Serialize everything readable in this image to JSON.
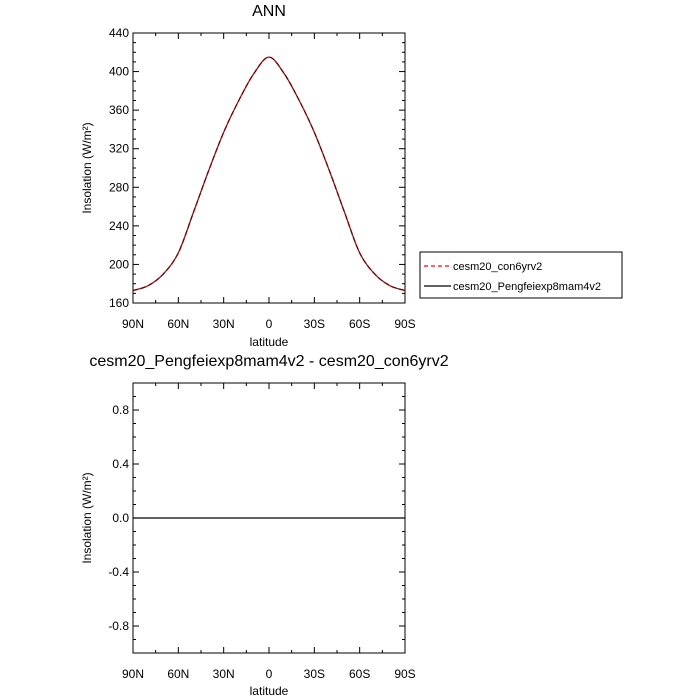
{
  "chart_data": [
    {
      "type": "line",
      "title": "ANN",
      "xlabel": "latitude",
      "ylabel": "Insolation (W/m²)",
      "x_tick_labels": [
        "90N",
        "60N",
        "30N",
        "0",
        "30S",
        "60S",
        "90S"
      ],
      "x_tick_values": [
        90,
        60,
        30,
        0,
        -30,
        -60,
        -90
      ],
      "xlim": [
        90,
        -90
      ],
      "ylim": [
        160,
        440
      ],
      "y_ticks": [
        160,
        200,
        240,
        280,
        320,
        360,
        400,
        440
      ],
      "y_tick_labels": [
        "160",
        "200",
        "240",
        "280",
        "320",
        "360",
        "400",
        "440"
      ],
      "grid": false,
      "legend_position": "right",
      "x": [
        90,
        80,
        70,
        60,
        50,
        40,
        30,
        20,
        10,
        0,
        -10,
        -20,
        -30,
        -40,
        -50,
        -60,
        -70,
        -80,
        -90
      ],
      "series": [
        {
          "name": "cesm20_con6yrv2",
          "color": "#ff0000",
          "style": "dashed",
          "values": [
            173,
            178,
            190,
            212,
            254,
            297,
            337,
            370,
            398,
            415,
            398,
            370,
            337,
            297,
            254,
            212,
            190,
            178,
            173
          ]
        },
        {
          "name": "cesm20_Pengfeiexp8mam4v2",
          "color": "#000000",
          "style": "solid",
          "values": [
            173,
            178,
            190,
            212,
            254,
            297,
            337,
            370,
            398,
            415,
            398,
            370,
            337,
            297,
            254,
            212,
            190,
            178,
            173
          ]
        }
      ]
    },
    {
      "type": "line",
      "title": "cesm20_Pengfeiexp8mam4v2 - cesm20_con6yrv2",
      "xlabel": "latitude",
      "ylabel": "Insolation (W/m²)",
      "x_tick_labels": [
        "90N",
        "60N",
        "30N",
        "0",
        "30S",
        "60S",
        "90S"
      ],
      "x_tick_values": [
        90,
        60,
        30,
        0,
        -30,
        -60,
        -90
      ],
      "xlim": [
        90,
        -90
      ],
      "ylim": [
        -1.0,
        1.0
      ],
      "y_ticks": [
        -0.8,
        -0.4,
        0.0,
        0.4,
        0.8
      ],
      "y_tick_labels": [
        "-0.8",
        "-0.4",
        "0.0",
        "0.4",
        "0.8"
      ],
      "grid": false,
      "x": [
        90,
        -90
      ],
      "series": [
        {
          "color": "#000000",
          "style": "solid",
          "values": [
            0.0,
            0.0
          ]
        }
      ]
    }
  ]
}
